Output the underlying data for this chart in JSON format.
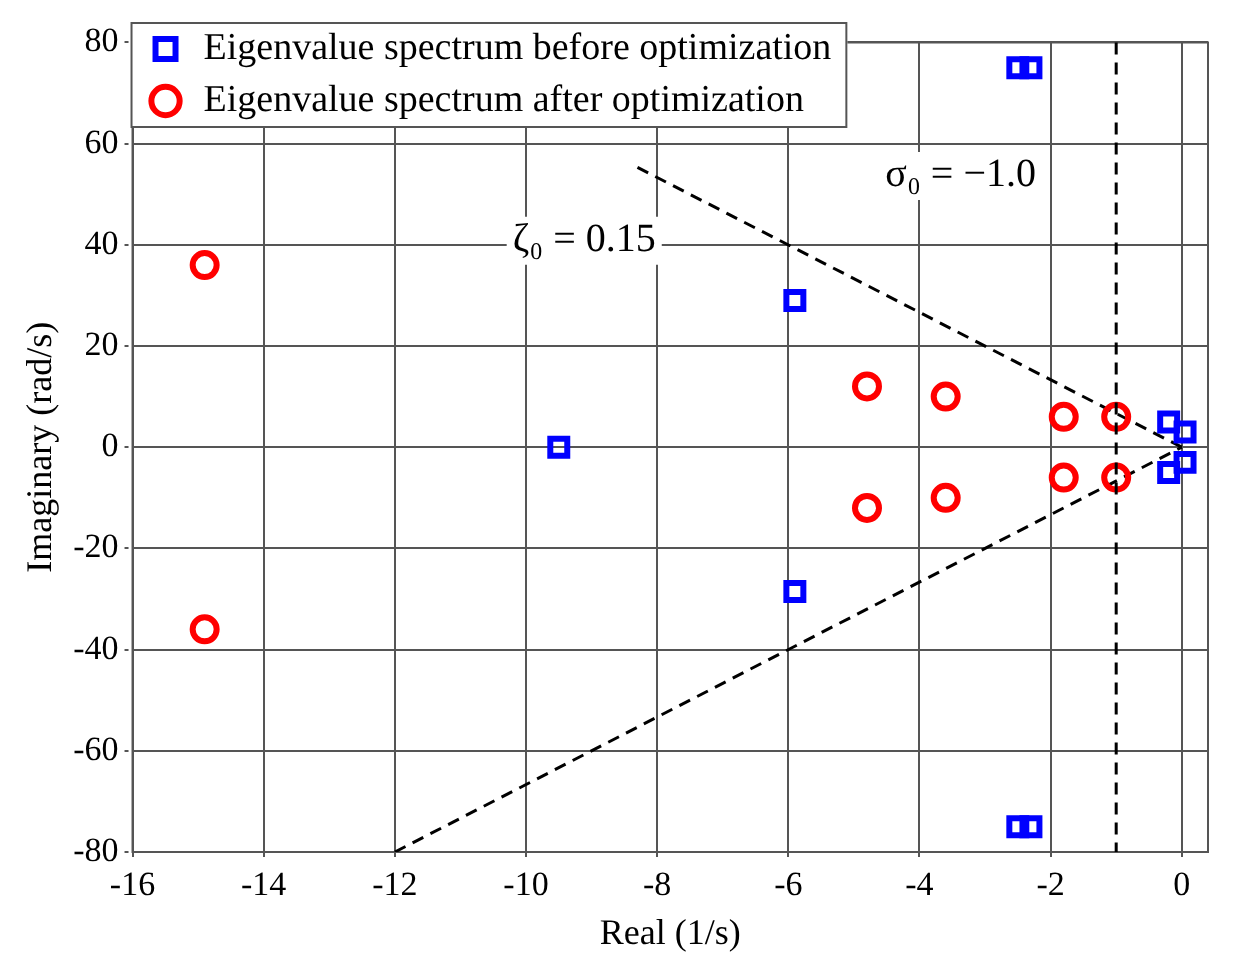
{
  "chart_data": {
    "type": "scatter",
    "xlabel": "Real (1/s)",
    "ylabel": "Imaginary (rad/s)",
    "xlim": [
      -16,
      0.4
    ],
    "ylim": [
      -80,
      80
    ],
    "xticks": [
      -16,
      -14,
      -12,
      -10,
      -8,
      -6,
      -4,
      -2,
      0
    ],
    "yticks": [
      -80,
      -60,
      -40,
      -20,
      0,
      20,
      40,
      60,
      80
    ],
    "grid": true,
    "legend": "top left",
    "series": [
      {
        "name": "Eigenvalue spectrum before optimization",
        "color": "#0000ff",
        "marker": "square",
        "x": [
          -2.5,
          -2.3,
          -2.5,
          -2.3,
          -5.9,
          -5.9,
          -9.5,
          -0.2,
          -0.2,
          0.05,
          0.05
        ],
        "values": [
          75,
          75,
          -75,
          -75,
          29,
          -28.5,
          0,
          5,
          -5,
          3,
          -3
        ]
      },
      {
        "name": "Eigenvalue spectrum after optimization",
        "color": "#ff0000",
        "marker": "circle",
        "x": [
          -14.9,
          -14.9,
          -4.8,
          -4.8,
          -3.6,
          -3.6,
          -1.8,
          -1.8,
          -1,
          -1
        ],
        "values": [
          36,
          -36,
          12,
          -12,
          10,
          -10,
          6,
          -6,
          6,
          -6
        ]
      },
      {
        "type": "line",
        "color": "#000000",
        "line_style": "dashed",
        "marker": "none",
        "x": [
          -8.3,
          0
        ],
        "values": [
          55.3,
          0
        ]
      },
      {
        "type": "line",
        "color": "#000000",
        "line_style": "dashed",
        "marker": "none",
        "x": [
          -12,
          0
        ],
        "values": [
          -80,
          0
        ]
      }
    ],
    "ref_lines": [
      {
        "axis": "x",
        "value": -1.0,
        "color": "#000000",
        "line_style": "dashed"
      }
    ],
    "annotations": [
      "ζ₀ = 0.15",
      "σ₀ = −1.0"
    ]
  }
}
